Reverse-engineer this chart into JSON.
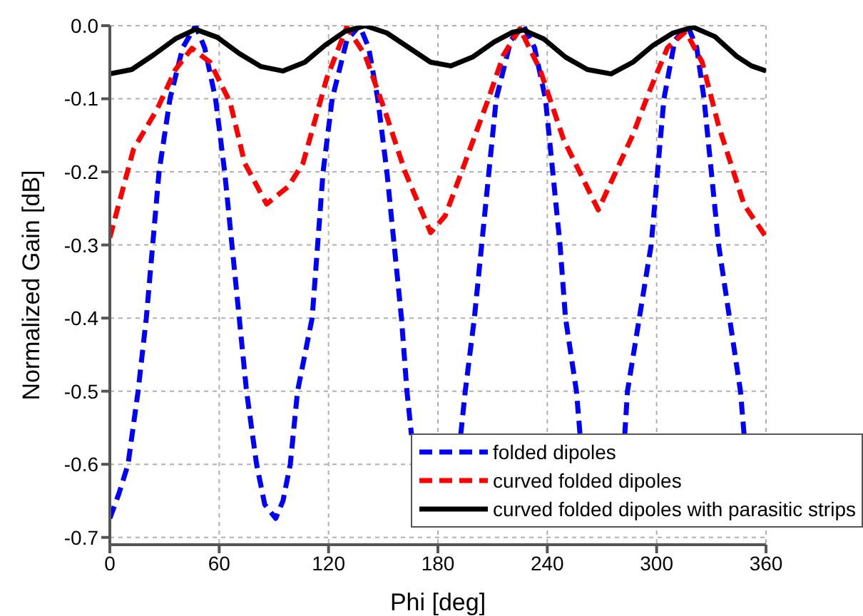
{
  "chart_data": {
    "type": "line",
    "xlabel": "Phi [deg]",
    "ylabel": "Normalized Gain [dB]",
    "xlim": [
      0,
      360
    ],
    "xticks": [
      0,
      60,
      120,
      180,
      240,
      300,
      360
    ],
    "ylim": [
      -0.71,
      0
    ],
    "yticks": [
      {
        "value": 0,
        "label": "0.0"
      },
      -0.1,
      -0.2,
      -0.3,
      -0.4,
      -0.5,
      -0.6,
      -0.7
    ],
    "grid": true,
    "legend": "bottom right",
    "series": [
      {
        "name": "folded dipoles",
        "color": "#0000ff",
        "line_style": "dashed",
        "x": [
          0,
          5,
          10,
          15.5,
          20,
          27,
          33,
          40,
          47,
          52,
          58,
          63,
          71,
          75,
          80.5,
          85,
          91,
          95,
          99,
          103,
          111,
          117,
          122,
          130,
          137,
          142,
          147,
          152,
          160,
          163,
          165.5,
          180,
          192.5,
          195,
          200,
          204,
          212,
          220,
          227,
          233,
          239,
          247,
          250,
          256,
          258,
          270,
          282.5,
          284,
          290.5,
          297,
          304,
          310,
          317,
          322,
          326,
          334,
          340,
          346,
          348
        ],
        "values": [
          -0.674,
          -0.64,
          -0.6,
          -0.5,
          -0.4,
          -0.2,
          -0.1,
          -0.03,
          0,
          -0.03,
          -0.1,
          -0.2,
          -0.4,
          -0.5,
          -0.6,
          -0.655,
          -0.674,
          -0.65,
          -0.6,
          -0.5,
          -0.4,
          -0.2,
          -0.1,
          -0.02,
          0,
          -0.03,
          -0.1,
          -0.2,
          -0.4,
          -0.5,
          -0.56,
          null,
          -0.56,
          -0.5,
          -0.4,
          -0.3,
          -0.1,
          -0.02,
          0,
          -0.03,
          -0.1,
          -0.3,
          -0.4,
          -0.5,
          -0.56,
          null,
          -0.56,
          -0.5,
          -0.4,
          -0.3,
          -0.1,
          -0.02,
          0,
          -0.03,
          -0.1,
          -0.3,
          -0.4,
          -0.5,
          -0.56
        ]
      },
      {
        "name": "curved folded dipoles",
        "color": "#ff0000",
        "line_style": "dashed",
        "x": [
          0,
          13,
          26,
          36,
          45,
          55,
          66,
          74,
          86,
          98,
          106,
          119,
          130,
          140,
          151,
          162,
          176,
          184,
          193,
          207,
          216,
          225,
          236,
          249,
          268,
          287,
          296,
          306,
          316,
          325,
          334,
          348,
          360
        ],
        "values": [
          -0.29,
          -0.169,
          -0.114,
          -0.06,
          -0.031,
          -0.05,
          -0.105,
          -0.188,
          -0.244,
          -0.22,
          -0.188,
          -0.072,
          -0.002,
          -0.04,
          -0.117,
          -0.2,
          -0.283,
          -0.26,
          -0.2,
          -0.105,
          -0.04,
          -0.004,
          -0.06,
          -0.156,
          -0.252,
          -0.149,
          -0.09,
          -0.03,
          -0.008,
          -0.05,
          -0.137,
          -0.245,
          -0.289
        ]
      },
      {
        "name": "curved folded dipoles with parasitic strips",
        "color": "#000000",
        "line_style": "solid",
        "x": [
          0,
          12,
          24,
          36,
          47,
          59,
          71,
          83,
          95,
          107,
          118,
          129,
          140,
          152,
          164,
          176,
          187,
          199,
          211,
          221,
          227,
          238,
          250,
          262,
          275,
          287,
          298,
          309,
          320,
          332,
          344,
          352,
          360
        ],
        "values": [
          -0.066,
          -0.06,
          -0.04,
          -0.018,
          -0.005,
          -0.016,
          -0.038,
          -0.056,
          -0.062,
          -0.05,
          -0.027,
          -0.008,
          0,
          -0.01,
          -0.03,
          -0.05,
          -0.055,
          -0.043,
          -0.022,
          -0.009,
          -0.006,
          -0.018,
          -0.043,
          -0.06,
          -0.066,
          -0.05,
          -0.027,
          -0.01,
          -0.002,
          -0.015,
          -0.042,
          -0.055,
          -0.062
        ]
      }
    ]
  }
}
